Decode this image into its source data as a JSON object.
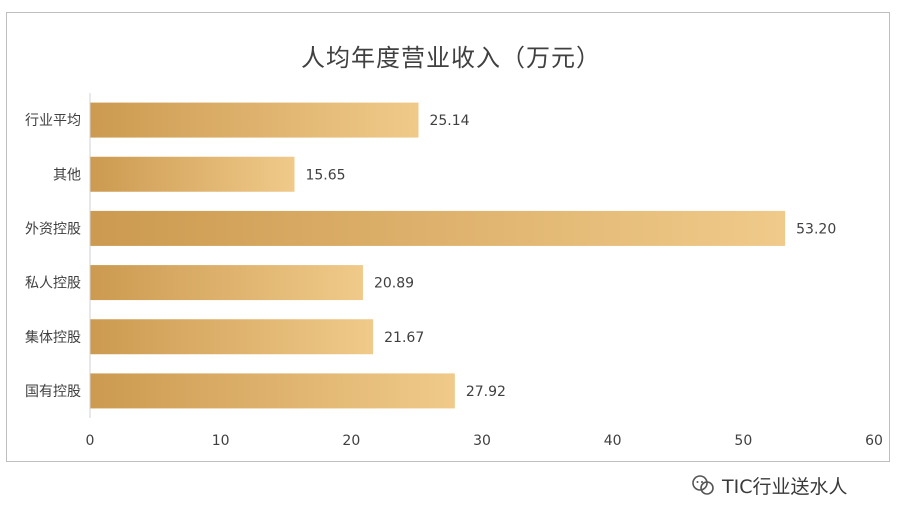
{
  "chart_data": {
    "type": "bar",
    "orientation": "horizontal",
    "title": "人均年度营业收入（万元）",
    "categories": [
      "行业平均",
      "其他",
      "外资控股",
      "私人控股",
      "集体控股",
      "国有控股"
    ],
    "values": [
      25.14,
      15.65,
      53.2,
      20.89,
      21.67,
      27.92
    ],
    "value_labels": [
      "25.14",
      "15.65",
      "53.20",
      "20.89",
      "21.67",
      "27.92"
    ],
    "xlim": [
      0,
      60
    ],
    "xticks": [
      0,
      10,
      20,
      30,
      40,
      50,
      60
    ],
    "grid": false,
    "legend": "none",
    "colors": {
      "bar_start": "#cc9a50",
      "bar_end": "#f0ca8a",
      "text": "#404040",
      "axis": "#d0d0d0"
    }
  },
  "watermark": {
    "text": "TIC行业送水人",
    "icon": "wechat-icon"
  }
}
